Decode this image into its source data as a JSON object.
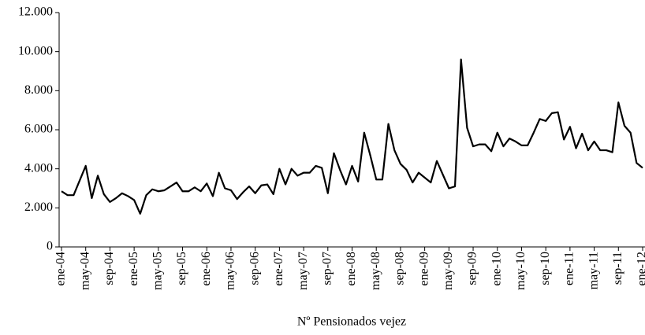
{
  "chart_data": {
    "type": "line",
    "x_label": "Nº Pensionados vejez",
    "color": "#000000",
    "categories": [
      "ene-04",
      null,
      null,
      null,
      "may-04",
      null,
      null,
      null,
      "sep-04",
      null,
      null,
      null,
      "ene-05",
      null,
      null,
      null,
      "may-05",
      null,
      null,
      null,
      "sep-05",
      null,
      null,
      null,
      "ene-06",
      null,
      null,
      null,
      "may-06",
      null,
      null,
      null,
      "sep-06",
      null,
      null,
      null,
      "ene-07",
      null,
      null,
      null,
      "may-07",
      null,
      null,
      null,
      "sep-07",
      null,
      null,
      null,
      "ene-08",
      null,
      null,
      null,
      "may-08",
      null,
      null,
      null,
      "sep-08",
      null,
      null,
      null,
      "ene-09",
      null,
      null,
      null,
      "may-09",
      null,
      null,
      null,
      "sep-09",
      null,
      null,
      null,
      "ene-10",
      null,
      null,
      null,
      "may-10",
      null,
      null,
      null,
      "sep-10",
      null,
      null,
      null,
      "ene-11",
      null,
      null,
      null,
      "may-11",
      null,
      null,
      null,
      "sep-11",
      null,
      null,
      null,
      "ene-12"
    ],
    "values": [
      2850,
      2650,
      2650,
      3400,
      4150,
      2500,
      3650,
      2700,
      2300,
      2500,
      2750,
      2600,
      2400,
      1700,
      2650,
      2950,
      2850,
      2900,
      3100,
      3300,
      2850,
      2850,
      3050,
      2850,
      3250,
      2600,
      3800,
      3000,
      2900,
      2450,
      2800,
      3100,
      2750,
      3150,
      3200,
      2700,
      4000,
      3200,
      4000,
      3650,
      3800,
      3800,
      4150,
      4050,
      2750,
      4800,
      3950,
      3200,
      4150,
      3350,
      5850,
      4700,
      3450,
      3450,
      6300,
      4950,
      4250,
      3950,
      3300,
      3800,
      3550,
      3300,
      4400,
      3700,
      3000,
      3100,
      9600,
      6100,
      5150,
      5250,
      5250,
      4900,
      5850,
      5150,
      5550,
      5400,
      5200,
      5200,
      5850,
      6550,
      6450,
      6850,
      6900,
      5500,
      6150,
      5050,
      5800,
      4950,
      5400,
      4950,
      4950,
      4850,
      7400,
      6200,
      5850,
      4300,
      4050
    ],
    "ylim": [
      0,
      12000
    ],
    "yticks": [
      0,
      {
        "value": 2000,
        "label": "2.000"
      },
      {
        "value": 4000,
        "label": "4.000"
      },
      {
        "value": 6000,
        "label": "6.000"
      },
      {
        "value": 8000,
        "label": "8.000"
      },
      {
        "value": 10000,
        "label": "10.000"
      },
      {
        "value": 12000,
        "label": "12.000"
      }
    ]
  }
}
